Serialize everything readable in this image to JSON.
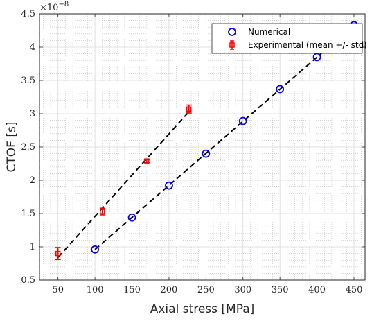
{
  "chart_data": {
    "type": "scatter",
    "xlabel": "Axial stress [MPa]",
    "ylabel": "CTOF [s]",
    "y_exponent": "×10",
    "y_exponent_power": "−8",
    "xlim": [
      25,
      465
    ],
    "ylim": [
      0.5,
      4.5
    ],
    "x_ticks": [
      50,
      100,
      150,
      200,
      250,
      300,
      350,
      400,
      450
    ],
    "y_ticks": [
      0.5,
      1,
      1.5,
      2,
      2.5,
      3,
      3.5,
      4,
      4.5
    ],
    "x_tick_labels": [
      "50",
      "100",
      "150",
      "200",
      "250",
      "300",
      "350",
      "400",
      "450"
    ],
    "y_tick_labels": [
      "0.5",
      "1",
      "1.5",
      "2",
      "2.5",
      "3",
      "3.5",
      "4",
      "4.5"
    ],
    "grid": true,
    "minor_grid": true,
    "legend_position": "top-right",
    "series": [
      {
        "name": "Numerical",
        "marker": "circle",
        "color": "#0000ff",
        "x": [
          100,
          150,
          200,
          250,
          300,
          350,
          400,
          450
        ],
        "y": [
          0.96,
          1.44,
          1.92,
          2.4,
          2.89,
          3.37,
          3.85,
          4.33
        ]
      },
      {
        "name": "Experimental (mean +/- std)",
        "marker": "square",
        "color": "#ff0000",
        "x": [
          50,
          110,
          170,
          227
        ],
        "y": [
          0.9,
          1.53,
          2.29,
          3.07
        ],
        "err": [
          0.09,
          0.05,
          0.02,
          0.06
        ]
      }
    ],
    "fit_lines": [
      {
        "x": [
          100,
          450
        ],
        "y": [
          0.96,
          4.33
        ],
        "style": "dashed",
        "color": "#000000"
      },
      {
        "x": [
          50,
          227
        ],
        "y": [
          0.84,
          3.03
        ],
        "style": "dashed",
        "color": "#000000"
      }
    ]
  }
}
